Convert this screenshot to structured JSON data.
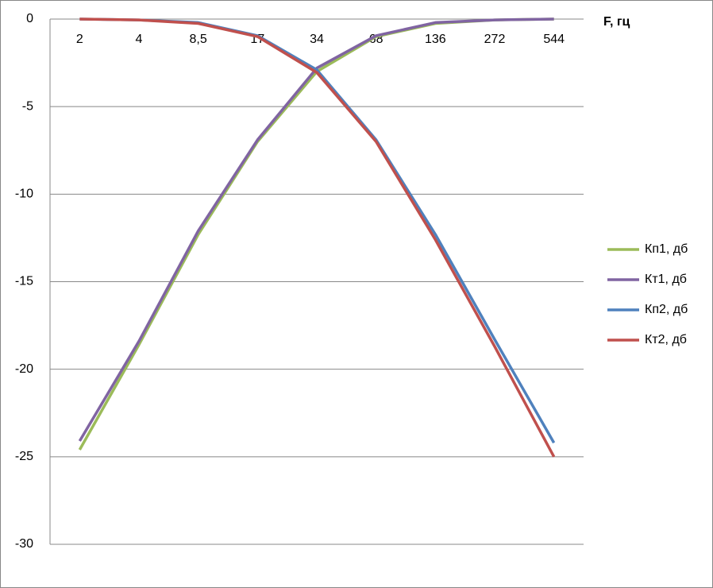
{
  "chart_data": {
    "type": "line",
    "x_label": "F, гц",
    "categories": [
      "2",
      "4",
      "8,5",
      "17",
      "34",
      "68",
      "136",
      "272",
      "544"
    ],
    "series": [
      {
        "name": "Кп1, дб",
        "color": "#9bbb59",
        "values": [
          -24.6,
          -18.6,
          -12.3,
          -7,
          -3,
          -1,
          -0.25,
          -0.05,
          0
        ]
      },
      {
        "name": "Кт1, дб",
        "color": "#8064a2",
        "values": [
          -24.1,
          -18.4,
          -12.1,
          -6.9,
          -2.8,
          -0.95,
          -0.2,
          -0.05,
          0
        ]
      },
      {
        "name": "Кп2, дб",
        "color": "#4f81bd",
        "values": [
          0,
          -0.05,
          -0.2,
          -0.95,
          -2.9,
          -6.9,
          -12.3,
          -18.3,
          -24.2
        ]
      },
      {
        "name": "Кт2, дб",
        "color": "#c0504d",
        "values": [
          0,
          -0.05,
          -0.25,
          -1,
          -3.05,
          -7,
          -12.6,
          -18.7,
          -25
        ]
      }
    ],
    "ylim": [
      -30,
      0
    ],
    "yticks": [
      0,
      -5,
      -10,
      -15,
      -20,
      -25,
      -30
    ],
    "grid": true,
    "legend": "right"
  }
}
